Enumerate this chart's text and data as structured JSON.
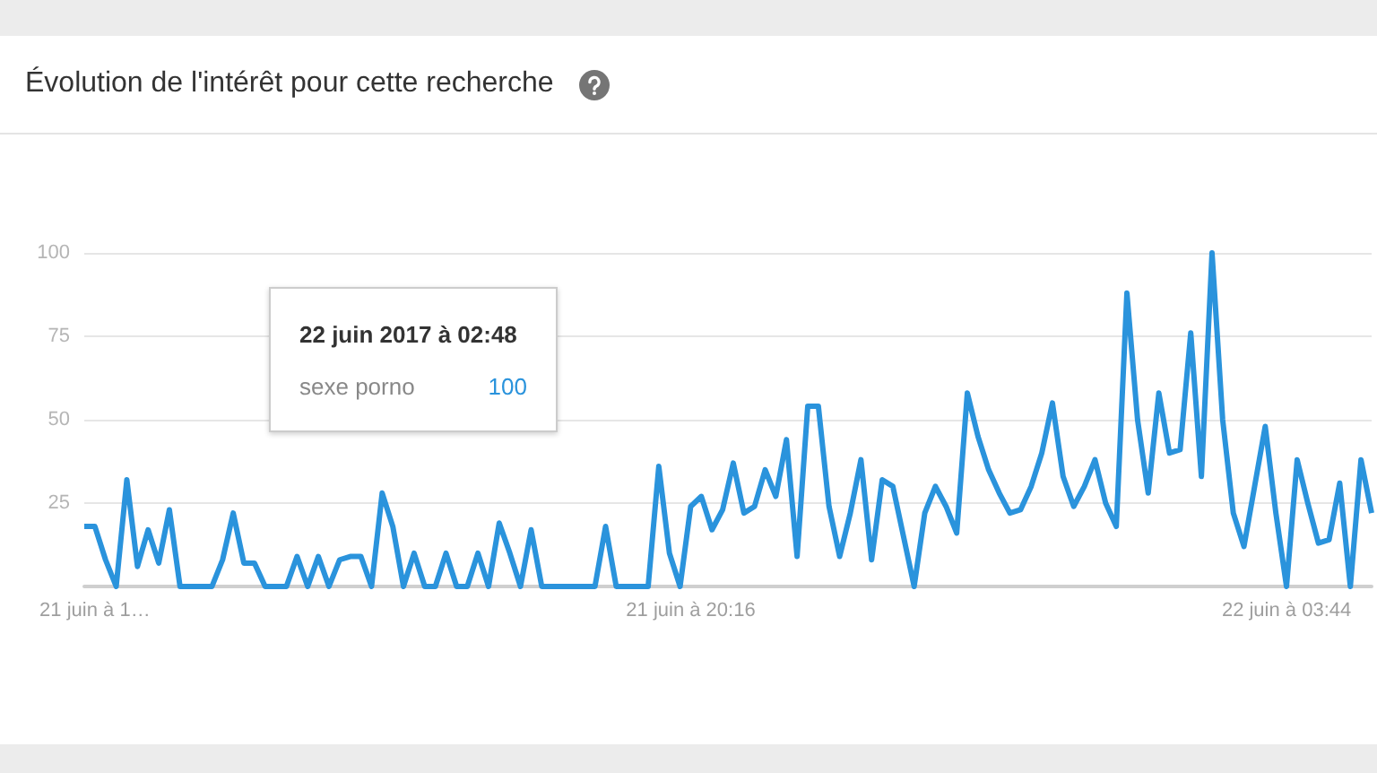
{
  "chart_data": {
    "type": "line",
    "title": "Évolution de l'intérêt pour cette recherche",
    "annotations": [
      "22 juin 2017 à 02:48",
      "100"
    ],
    "categories": [
      null,
      "21 juin à 1…",
      null,
      null,
      null,
      null,
      null,
      null,
      null,
      null,
      null,
      null,
      null,
      null,
      null,
      null,
      null,
      null,
      null,
      null,
      null,
      null,
      null,
      null,
      null,
      null,
      null,
      null,
      null,
      null,
      null,
      null,
      null,
      null,
      null,
      null,
      null,
      null,
      null,
      null,
      null,
      null,
      null,
      null,
      null,
      null,
      null,
      null,
      null,
      null,
      null,
      null,
      null,
      null,
      null,
      null,
      null,
      "21 juin à 20:16",
      null,
      null,
      null,
      null,
      null,
      null,
      null,
      null,
      null,
      null,
      null,
      null,
      null,
      null,
      null,
      null,
      null,
      null,
      null,
      null,
      null,
      null,
      null,
      null,
      null,
      null,
      null,
      null,
      null,
      null,
      null,
      null,
      null,
      null,
      null,
      null,
      null,
      null,
      null,
      null,
      null,
      null,
      null,
      null,
      null,
      null,
      null,
      null,
      null,
      null,
      null,
      null,
      null,
      null,
      null,
      "22 juin à 03:44",
      null,
      null,
      null,
      null,
      null,
      null,
      null,
      null
    ],
    "series": [
      {
        "name": "sexe porno",
        "color": "#2a93dc",
        "values": [
          18,
          18,
          8,
          0,
          32,
          6,
          17,
          7,
          23,
          0,
          0,
          0,
          0,
          8,
          22,
          7,
          7,
          0,
          0,
          0,
          9,
          0,
          9,
          0,
          8,
          9,
          9,
          0,
          28,
          18,
          0,
          10,
          0,
          0,
          10,
          0,
          0,
          10,
          0,
          19,
          10,
          0,
          17,
          0,
          0,
          0,
          0,
          0,
          0,
          18,
          0,
          0,
          0,
          0,
          36,
          10,
          0,
          24,
          27,
          17,
          23,
          37,
          22,
          24,
          35,
          27,
          44,
          9,
          54,
          54,
          24,
          9,
          22,
          38,
          8,
          32,
          30,
          15,
          0,
          22,
          30,
          24,
          16,
          58,
          45,
          35,
          28,
          22,
          23,
          30,
          40,
          55,
          33,
          24,
          30,
          38,
          25,
          18,
          88,
          50,
          28,
          58,
          40,
          41,
          76,
          33,
          100,
          50,
          22,
          12,
          30,
          48,
          22,
          0,
          38,
          25,
          13,
          14,
          31,
          0,
          38,
          22
        ]
      }
    ],
    "ylim": [
      0,
      100
    ],
    "yticks": [
      {
        "value": 0,
        "label": null
      },
      25,
      50,
      75,
      100
    ],
    "grid": "y",
    "marker": "none",
    "line_style": "solid"
  }
}
